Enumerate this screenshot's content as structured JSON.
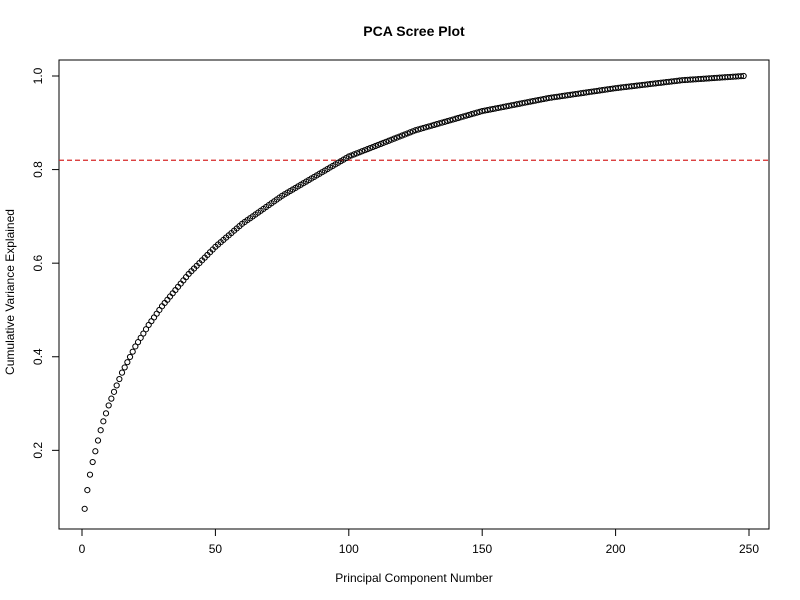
{
  "chart_data": {
    "type": "scatter",
    "title": "PCA Scree Plot",
    "xlabel": "Principal Component Number",
    "ylabel": "Cumulative Variance Explained",
    "xlim": [
      0,
      250
    ],
    "ylim": [
      0.0725,
      1.0
    ],
    "x_ticks": [
      0,
      50,
      100,
      150,
      200,
      250
    ],
    "x_tick_labels": [
      "0",
      "50",
      "100",
      "150",
      "200",
      "250"
    ],
    "y_ticks": [
      0.2,
      0.4,
      0.6,
      0.8,
      1.0
    ],
    "y_tick_labels": [
      "0.2",
      "0.4",
      "0.6",
      "0.8",
      "1.0"
    ],
    "grid": false,
    "legend": "none",
    "marker": "open-circle",
    "x_start": 1,
    "x_end": 248,
    "series": [
      {
        "x": [
          1,
          2,
          3,
          4,
          5,
          6,
          7,
          8,
          9,
          10,
          12,
          15,
          20,
          25,
          30,
          40,
          50,
          60,
          75,
          100,
          125,
          150,
          175,
          200,
          225,
          248
        ],
        "y": [
          0.075,
          0.115,
          0.148,
          0.175,
          0.198,
          0.221,
          0.243,
          0.262,
          0.279,
          0.296,
          0.325,
          0.366,
          0.422,
          0.468,
          0.508,
          0.577,
          0.635,
          0.684,
          0.744,
          0.828,
          0.884,
          0.925,
          0.953,
          0.974,
          0.991,
          1.0
        ]
      }
    ],
    "reference_line": {
      "orientation": "horizontal",
      "y": 0.82,
      "color": "#d62728",
      "style": "dashed"
    }
  }
}
